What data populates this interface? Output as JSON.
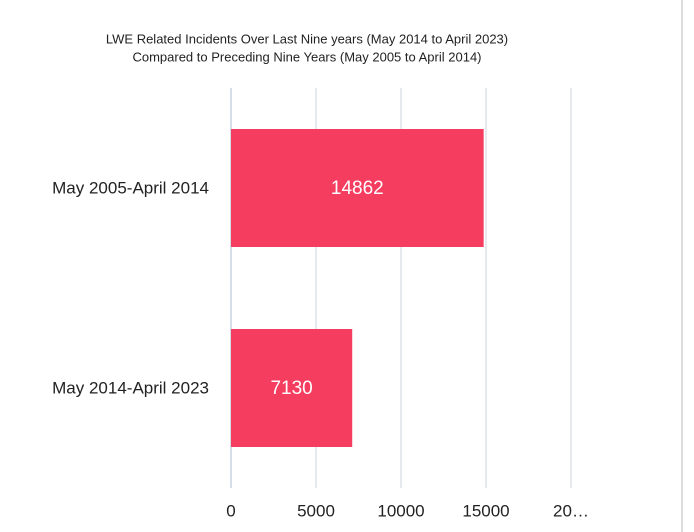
{
  "chart_data": {
    "type": "hbar",
    "title": "LWE Related Incidents Over Last Nine years (May 2014 to April 2023)",
    "subtitle": "Compared to Preceding Nine Years (May 2005 to April 2014)",
    "categories": [
      "May 2005-April 2014",
      "May 2014-April 2023"
    ],
    "values": [
      14862,
      7130
    ],
    "color": "#f53d5f",
    "xlim": [
      0,
      20000
    ],
    "xticks": [
      0,
      5000,
      10000,
      15000,
      {
        "value": 20000,
        "label": "20…"
      }
    ],
    "grid": true
  }
}
